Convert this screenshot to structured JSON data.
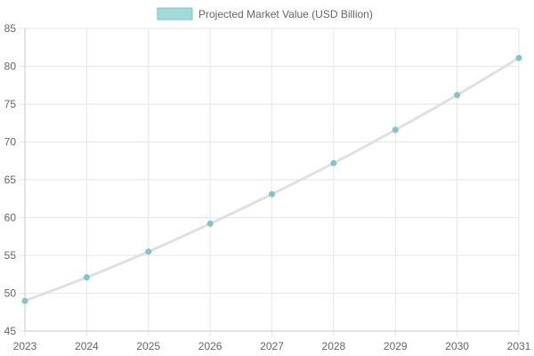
{
  "chart_data": {
    "type": "line",
    "x": [
      "2023",
      "2024",
      "2025",
      "2026",
      "2027",
      "2028",
      "2029",
      "2030",
      "2031"
    ],
    "series": [
      {
        "name": "Projected Market Value (USD Billion)",
        "values": [
          49.0,
          52.1,
          55.5,
          59.2,
          63.1,
          67.2,
          71.6,
          76.2,
          81.1
        ]
      }
    ],
    "title": "",
    "xlabel": "",
    "ylabel": "",
    "ylim": [
      45,
      85
    ],
    "yticks": [
      45,
      50,
      55,
      60,
      65,
      70,
      75,
      80,
      85
    ],
    "grid": true,
    "legend_position": "top-center",
    "colors": {
      "line": "#e0e0e0",
      "point": "#7fc6c9",
      "legend_fill": "#9fdcd9",
      "legend_border": "#7cc4c6",
      "grid": "#e6e6e6",
      "axis": "#c8c8c8",
      "text": "#666666"
    }
  }
}
